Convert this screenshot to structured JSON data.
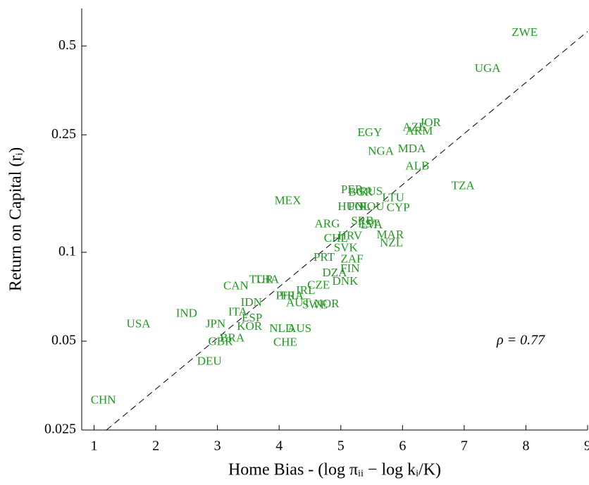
{
  "chart_data": {
    "type": "scatter",
    "xlabel": "Home Bias - (log πᵢᵢ − log kᵢ/K)",
    "ylabel": "Return on Capital (rᵢ)",
    "annotation": "ρ = 0.77",
    "color": "#1f9a1f",
    "yscale": "log",
    "xlim": [
      0.8,
      9.0
    ],
    "ylim": [
      0.025,
      0.67
    ],
    "xticks": [
      1,
      2,
      3,
      4,
      5,
      6,
      7,
      8,
      9
    ],
    "yticks": [
      0.025,
      0.05,
      0.1,
      0.25,
      0.5
    ],
    "labels": [
      "ZWE",
      "UGA",
      "JOR",
      "AZE",
      "ARM",
      "EGY",
      "MDA",
      "NGA",
      "ALB",
      "TZA",
      "PER",
      "BGR",
      "RUS",
      "MEX",
      "LTU",
      "CYP",
      "HUN",
      "POL",
      "ROU",
      "ARG",
      "SRB",
      "EST",
      "LVA",
      "HRV",
      "MAR",
      "CHL",
      "NZL",
      "SVK",
      "PRT",
      "ZAF",
      "FIN",
      "DZA",
      "DNK",
      "TUR",
      "THA",
      "CAN",
      "CZE",
      "IRL",
      "PHL",
      "FRA",
      "IDN",
      "AUT",
      "SWE",
      "NOR",
      "ITA",
      "IND",
      "ESP",
      "JPN",
      "USA",
      "KOR",
      "NLD",
      "AUS",
      "GBR",
      "BRA",
      "CHE",
      "DEU",
      "CHN"
    ],
    "x": [
      7.98,
      7.38,
      6.45,
      6.19,
      6.27,
      5.47,
      6.15,
      5.65,
      6.24,
      6.98,
      5.18,
      5.32,
      5.49,
      4.14,
      5.85,
      5.93,
      5.16,
      5.3,
      5.5,
      4.78,
      5.35,
      5.45,
      5.5,
      5.15,
      5.8,
      4.92,
      5.82,
      5.08,
      4.73,
      5.18,
      5.15,
      4.9,
      5.07,
      3.71,
      3.8,
      3.3,
      4.64,
      4.43,
      4.13,
      4.21,
      3.55,
      4.31,
      4.58,
      4.77,
      3.33,
      2.5,
      3.56,
      2.97,
      1.72,
      3.52,
      4.04,
      4.33,
      3.05,
      3.24,
      4.1,
      2.87,
      1.15
    ],
    "values": [
      0.552,
      0.417,
      0.273,
      0.264,
      0.256,
      0.253,
      0.223,
      0.219,
      0.195,
      0.167,
      0.162,
      0.159,
      0.16,
      0.149,
      0.152,
      0.141,
      0.142,
      0.142,
      0.142,
      0.124,
      0.127,
      0.124,
      0.123,
      0.113,
      0.114,
      0.111,
      0.107,
      0.103,
      0.0955,
      0.0944,
      0.0875,
      0.0846,
      0.0792,
      0.0805,
      0.0805,
      0.0766,
      0.077,
      0.0738,
      0.0709,
      0.0709,
      0.0672,
      0.067,
      0.066,
      0.0665,
      0.0625,
      0.0618,
      0.0595,
      0.0569,
      0.0569,
      0.0557,
      0.0548,
      0.0548,
      0.0496,
      0.051,
      0.0493,
      0.0425,
      0.0314
    ],
    "fit_line": {
      "x": [
        1.2,
        9.0
      ],
      "y": [
        0.025,
        0.56
      ]
    }
  }
}
